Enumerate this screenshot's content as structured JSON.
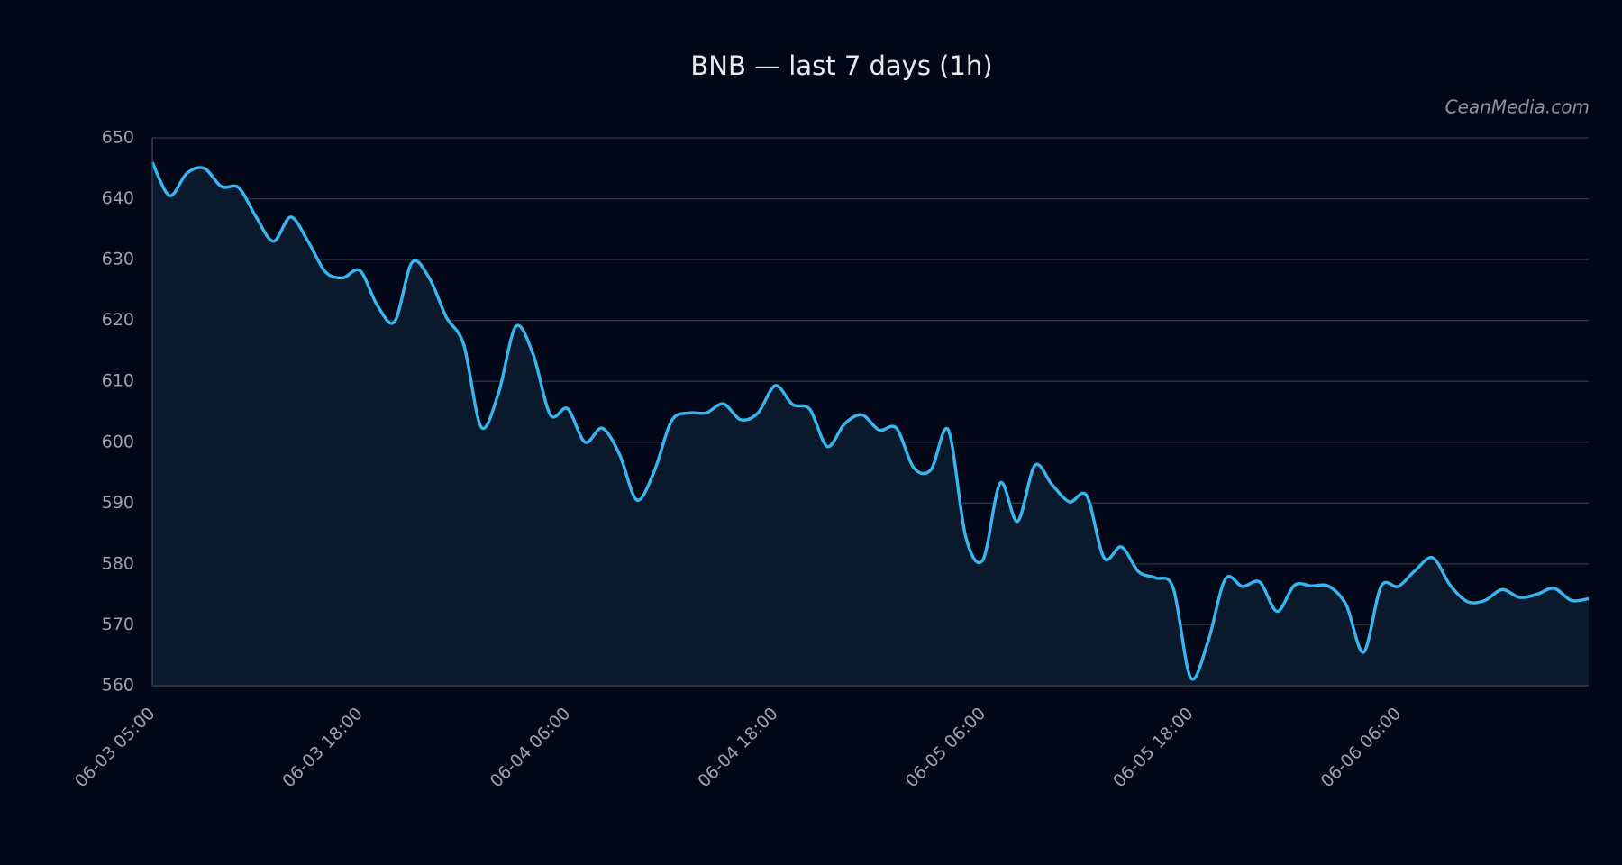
{
  "chart_data": {
    "type": "line",
    "title": "BNB — last 7 days (1h)",
    "watermark": "CeanMedia.com",
    "color": "#38b6f0",
    "area_color": "#0a1a2c",
    "grid": true,
    "categories": [
      "06-03 05:00",
      null,
      null,
      null,
      null,
      null,
      null,
      null,
      null,
      null,
      null,
      null,
      "06-03 18:00",
      null,
      null,
      null,
      null,
      null,
      null,
      null,
      null,
      null,
      null,
      null,
      "06-04 06:00",
      null,
      null,
      null,
      null,
      null,
      null,
      null,
      null,
      null,
      null,
      null,
      "06-04 18:00",
      null,
      null,
      null,
      null,
      null,
      null,
      null,
      null,
      null,
      null,
      null,
      "06-05 06:00",
      null,
      null,
      null,
      null,
      null,
      null,
      null,
      null,
      null,
      null,
      null,
      "06-05 18:00",
      null,
      null,
      null,
      null,
      null,
      null,
      null,
      null,
      null,
      null,
      null,
      "06-06 06:00",
      null,
      null,
      null,
      null,
      null,
      null,
      null,
      null,
      null,
      null,
      null
    ],
    "values": [
      646,
      640.5,
      644.2,
      645,
      642,
      641.8,
      637,
      633,
      637,
      633,
      628,
      627,
      628.2,
      622.5,
      619.8,
      629.5,
      627,
      620.5,
      616,
      602.5,
      608,
      619,
      614.5,
      604.5,
      605.5,
      600,
      602.3,
      598,
      590.5,
      595.2,
      603.5,
      604.8,
      604.8,
      606.3,
      603.7,
      604.8,
      609.3,
      606.2,
      605.4,
      599.3,
      603,
      604.5,
      602,
      602.3,
      595.8,
      595.5,
      602,
      584.5,
      580.7,
      593.3,
      587,
      596.2,
      593,
      590.2,
      591.2,
      581,
      582.8,
      578.7,
      577.7,
      576,
      561.3,
      567.2,
      577.5,
      576.3,
      577,
      572.2,
      576.5,
      576.4,
      576.3,
      573.2,
      565.5,
      576.3,
      576.3,
      579,
      581,
      576.5,
      573.8,
      574,
      575.8,
      574.5,
      575,
      576,
      574,
      574.3
    ],
    "ylim": [
      560,
      650
    ],
    "yticks": [
      560,
      570,
      580,
      590,
      600,
      610,
      620,
      630,
      640,
      650
    ]
  }
}
